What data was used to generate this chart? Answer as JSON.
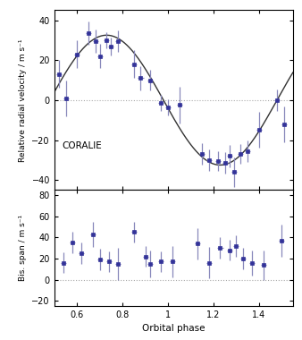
{
  "rv_x": [
    0.52,
    0.55,
    0.6,
    0.65,
    0.68,
    0.7,
    0.73,
    0.75,
    0.78,
    0.85,
    0.88,
    0.92,
    0.97,
    1.0,
    1.05,
    1.15,
    1.18,
    1.22,
    1.25,
    1.27,
    1.29,
    1.32,
    1.35,
    1.4,
    1.48,
    1.51
  ],
  "rv_y": [
    13.0,
    1.0,
    23.0,
    33.5,
    29.5,
    22.0,
    30.0,
    27.0,
    29.5,
    18.0,
    11.0,
    10.0,
    -1.5,
    -3.5,
    -2.5,
    -27.0,
    -30.0,
    -30.5,
    -31.5,
    -28.0,
    -36.0,
    -27.0,
    -25.5,
    -15.0,
    0.0,
    -12.0
  ],
  "rv_xerr": [
    0.012,
    0.012,
    0.012,
    0.012,
    0.012,
    0.012,
    0.012,
    0.012,
    0.012,
    0.012,
    0.012,
    0.012,
    0.012,
    0.012,
    0.012,
    0.012,
    0.012,
    0.012,
    0.012,
    0.012,
    0.012,
    0.012,
    0.012,
    0.012,
    0.012,
    0.012
  ],
  "rv_yerr": [
    7.0,
    9.0,
    7.0,
    6.0,
    6.0,
    6.0,
    4.0,
    4.5,
    5.5,
    7.0,
    6.0,
    5.0,
    4.0,
    4.0,
    9.0,
    5.5,
    5.5,
    5.0,
    5.5,
    5.5,
    7.5,
    5.0,
    5.5,
    9.0,
    5.5,
    9.0
  ],
  "bis_x": [
    0.54,
    0.58,
    0.62,
    0.67,
    0.7,
    0.74,
    0.78,
    0.85,
    0.9,
    0.92,
    0.97,
    1.02,
    1.13,
    1.18,
    1.23,
    1.27,
    1.3,
    1.33,
    1.37,
    1.42,
    1.5
  ],
  "bis_y": [
    16.0,
    35.0,
    25.0,
    43.0,
    19.0,
    17.0,
    15.0,
    45.0,
    22.0,
    15.0,
    17.0,
    17.0,
    34.0,
    16.0,
    30.0,
    28.0,
    32.0,
    20.0,
    16.0,
    14.0,
    37.0
  ],
  "bis_xerr": [
    0.012,
    0.012,
    0.012,
    0.012,
    0.012,
    0.012,
    0.012,
    0.012,
    0.012,
    0.012,
    0.012,
    0.012,
    0.012,
    0.012,
    0.012,
    0.012,
    0.012,
    0.012,
    0.012,
    0.012,
    0.012
  ],
  "bis_yerr": [
    10.0,
    10.0,
    10.0,
    12.0,
    10.0,
    10.0,
    15.0,
    10.0,
    10.0,
    13.0,
    10.0,
    15.0,
    15.0,
    15.0,
    10.0,
    10.0,
    10.0,
    10.0,
    12.0,
    14.0,
    15.0
  ],
  "sine_amplitude": 32.5,
  "sine_phase_peak": 0.73,
  "rv_ylim": [
    -45,
    45
  ],
  "rv_yticks": [
    -40,
    -20,
    0,
    20,
    40
  ],
  "bis_ylim": [
    -25,
    85
  ],
  "bis_yticks": [
    -20,
    0,
    20,
    40,
    60,
    80
  ],
  "xlim": [
    0.5,
    1.55
  ],
  "xticks": [
    0.6,
    0.8,
    1.0,
    1.2,
    1.4
  ],
  "xlabel": "Orbital phase",
  "rv_ylabel": "Relative radial velocity / m s⁻¹",
  "bis_ylabel": "Bis. span / m s⁻¹",
  "label": "CORALIE",
  "point_color": "#333399",
  "point_color_light": "#8888bb",
  "curve_color": "#333333",
  "dotted_color": "#aaaaaa",
  "bg_color": "#ffffff"
}
